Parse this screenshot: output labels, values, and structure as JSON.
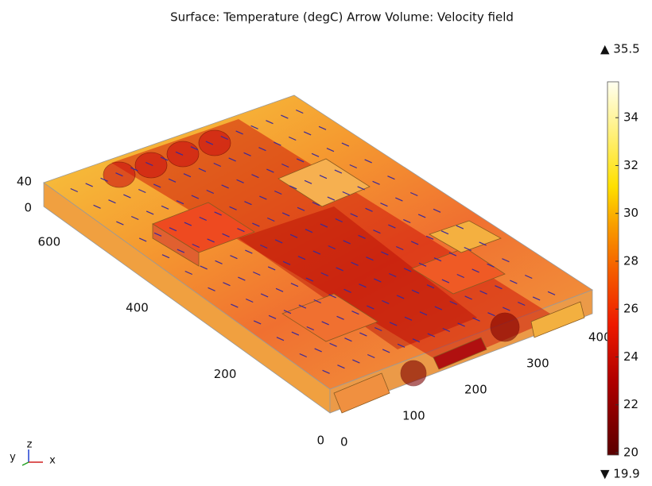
{
  "title": "Surface: Temperature (degC)  Arrow Volume: Velocity field",
  "colorbar": {
    "max_label": "▲ 35.5",
    "min_label": "▼ 19.9",
    "range": [
      19.9,
      35.5
    ],
    "ticks": [
      20,
      22,
      24,
      26,
      28,
      30,
      32,
      34
    ]
  },
  "axes": {
    "z_ticks": [
      0,
      40
    ],
    "y_ticks": [
      0,
      200,
      400,
      600
    ],
    "x_ticks": [
      0,
      100,
      200,
      300,
      400
    ],
    "triad": {
      "x": "x",
      "y": "y",
      "z": "z"
    }
  }
}
